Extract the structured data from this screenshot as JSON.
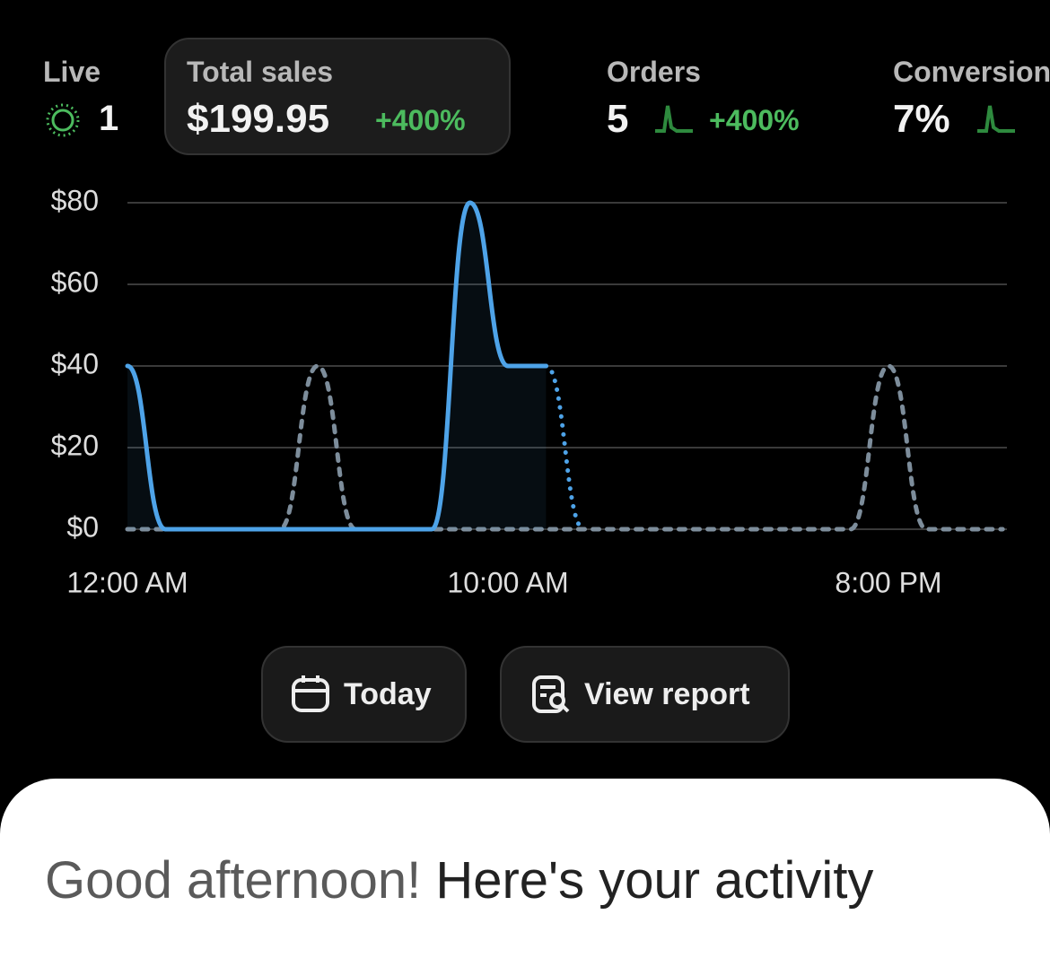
{
  "stats": [
    {
      "label": "Live",
      "value": "1"
    },
    {
      "label": "Total sales",
      "value": "$199.95",
      "change": "+400%"
    },
    {
      "label": "Orders",
      "value": "5",
      "change": "+400%"
    },
    {
      "label": "Conversion",
      "value": "7%"
    }
  ],
  "chart_data": {
    "type": "line",
    "categories": [
      "12:00 AM",
      null,
      null,
      null,
      null,
      null,
      null,
      null,
      null,
      null,
      "10:00 AM",
      null,
      null,
      null,
      null,
      null,
      null,
      null,
      null,
      null,
      "8:00 PM",
      null,
      null,
      null
    ],
    "series": [
      {
        "color": "#4ea3e8",
        "line_style": "solid",
        "values": [
          40,
          0,
          0,
          0,
          0,
          0,
          0,
          0,
          0,
          80,
          40,
          40,
          0,
          null,
          null,
          null,
          null,
          null,
          null,
          null,
          null,
          null,
          null,
          null
        ]
      },
      {
        "color": "#7d8d9b",
        "line_style": "dashed",
        "values": [
          0,
          0,
          0,
          0,
          0,
          40,
          0,
          0,
          0,
          0,
          0,
          0,
          0,
          0,
          0,
          0,
          0,
          0,
          0,
          0,
          40,
          0,
          0,
          0
        ]
      }
    ],
    "ylim": [
      0,
      80
    ],
    "yticks": [
      {
        "value": 0,
        "label": "$0"
      },
      {
        "value": 20,
        "label": "$20"
      },
      {
        "value": 40,
        "label": "$40"
      },
      {
        "value": 60,
        "label": "$60"
      },
      {
        "value": 80,
        "label": "$80"
      }
    ],
    "grid": true
  },
  "buttons": [
    "Today",
    "View report"
  ],
  "greeting": {
    "lead": "Good afternoon!",
    "rest": "Here's your activity"
  }
}
